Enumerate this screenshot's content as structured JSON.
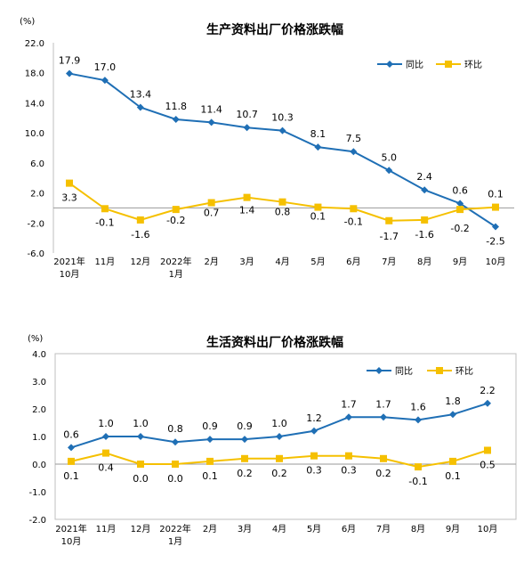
{
  "charts": [
    {
      "title": "生产资料出厂价格涨跌幅",
      "unit": "(%)",
      "yticks": [
        "22.0",
        "18.0",
        "14.0",
        "10.0",
        "6.0",
        "2.0",
        "-2.0",
        "-6.0"
      ],
      "legend": [
        "同比",
        "环比"
      ]
    },
    {
      "title": "生活资料出厂价格涨跌幅",
      "unit": "(%)",
      "yticks": [
        "4.0",
        "3.0",
        "2.0",
        "1.0",
        "0.0",
        "-1.0",
        "-2.0"
      ],
      "legend": [
        "同比",
        "环比"
      ]
    }
  ],
  "chart_data": [
    {
      "type": "line",
      "title": "生产资料出厂价格涨跌幅",
      "ylabel": "(%)",
      "ylim": [
        -6,
        22
      ],
      "categories": [
        [
          "2021年",
          "10月"
        ],
        [
          "11月"
        ],
        [
          "12月"
        ],
        [
          "2022年",
          "1月"
        ],
        [
          "2月"
        ],
        [
          "3月"
        ],
        [
          "4月"
        ],
        [
          "5月"
        ],
        [
          "6月"
        ],
        [
          "7月"
        ],
        [
          "8月"
        ],
        [
          "9月"
        ],
        [
          "10月"
        ]
      ],
      "series": [
        {
          "name": "同比",
          "color": "#1f6fb5",
          "marker": "diamond",
          "values": [
            17.9,
            17.0,
            13.4,
            11.8,
            11.4,
            10.7,
            10.3,
            8.1,
            7.5,
            5.0,
            2.4,
            0.6,
            -2.5
          ],
          "labels": [
            "17.9",
            "17.0",
            "13.4",
            "11.8",
            "11.4",
            "10.7",
            "10.3",
            "8.1",
            "7.5",
            "5.0",
            "2.4",
            "0.6",
            "-2.5"
          ]
        },
        {
          "name": "环比",
          "color": "#f5c000",
          "marker": "square",
          "values": [
            3.3,
            -0.1,
            -1.6,
            -0.2,
            0.7,
            1.4,
            0.8,
            0.1,
            -0.1,
            -1.7,
            -1.6,
            -0.2,
            0.1
          ],
          "labels": [
            "3.3",
            "-0.1",
            "-1.6",
            "-0.2",
            "0.7",
            "1.4",
            "0.8",
            "0.1",
            "-0.1",
            "-1.7",
            "-1.6",
            "-0.2",
            "0.1"
          ]
        }
      ],
      "legend_position": "top-right",
      "grid": false
    },
    {
      "type": "line",
      "title": "生活资料出厂价格涨跌幅",
      "ylabel": "(%)",
      "ylim": [
        -2,
        4
      ],
      "categories": [
        [
          "2021年",
          "10月"
        ],
        [
          "11月"
        ],
        [
          "12月"
        ],
        [
          "2022年",
          "1月"
        ],
        [
          "2月"
        ],
        [
          "3月"
        ],
        [
          "4月"
        ],
        [
          "5月"
        ],
        [
          "6月"
        ],
        [
          "7月"
        ],
        [
          "8月"
        ],
        [
          "9月"
        ],
        [
          "10月"
        ]
      ],
      "series": [
        {
          "name": "同比",
          "color": "#1f6fb5",
          "marker": "diamond",
          "values": [
            0.6,
            1.0,
            1.0,
            0.8,
            0.9,
            0.9,
            1.0,
            1.2,
            1.7,
            1.7,
            1.6,
            1.8,
            2.2
          ],
          "labels": [
            "0.6",
            "1.0",
            "1.0",
            "0.8",
            "0.9",
            "0.9",
            "1.0",
            "1.2",
            "1.7",
            "1.7",
            "1.6",
            "1.8",
            "2.2"
          ]
        },
        {
          "name": "环比",
          "color": "#f5c000",
          "marker": "square",
          "values": [
            0.1,
            0.4,
            0.0,
            0.0,
            0.1,
            0.2,
            0.2,
            0.3,
            0.3,
            0.2,
            -0.1,
            0.1,
            0.5
          ],
          "labels": [
            "0.1",
            "0.4",
            "0.0",
            "0.0",
            "0.1",
            "0.2",
            "0.2",
            "0.3",
            "0.3",
            "0.2",
            "-0.1",
            "0.1",
            "0.5"
          ]
        }
      ],
      "legend_position": "top-right",
      "grid": false
    }
  ]
}
